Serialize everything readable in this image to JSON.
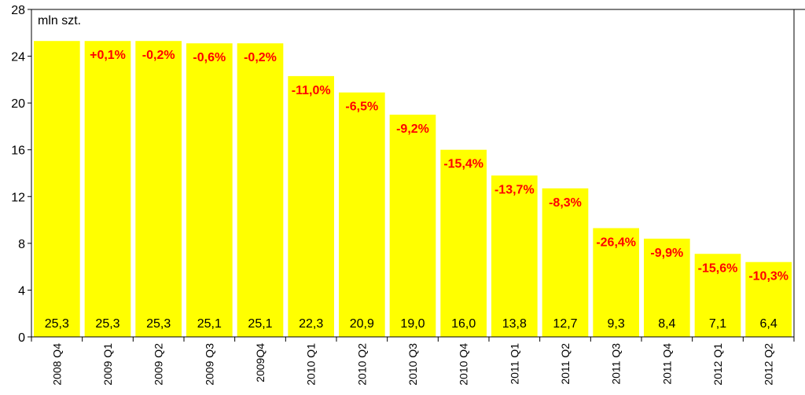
{
  "chart_data": {
    "type": "bar",
    "unit_label": "mln szt.",
    "categories": [
      "2008 Q4",
      "2009 Q1",
      "2009 Q2",
      "2009 Q3",
      "2009Q4",
      "2010 Q1",
      "2010 Q2",
      "2010 Q3",
      "2010 Q4",
      "2011 Q1",
      "2011 Q2",
      "2011 Q3",
      "2011 Q4",
      "2012 Q1",
      "2012 Q2"
    ],
    "values": [
      25.3,
      25.3,
      25.3,
      25.1,
      25.1,
      22.3,
      20.9,
      19.0,
      16.0,
      13.8,
      12.7,
      9.3,
      8.4,
      7.1,
      6.4
    ],
    "value_labels": [
      "25,3",
      "25,3",
      "25,3",
      "25,1",
      "25,1",
      "22,3",
      "20,9",
      "19,0",
      "16,0",
      "13,8",
      "12,7",
      "9,3",
      "8,4",
      "7,1",
      "6,4"
    ],
    "change_labels": [
      "",
      "+0,1%",
      "-0,2%",
      "-0,6%",
      "-0,2%",
      "-11,0%",
      "-6,5%",
      "-9,2%",
      "-15,4%",
      "-13,7%",
      "-8,3%",
      "-26,4%",
      "-9,9%",
      "-15,6%",
      "-10,3%"
    ],
    "yticks": [
      0,
      4,
      8,
      12,
      16,
      20,
      24,
      28
    ],
    "ylim": [
      0,
      28
    ],
    "grid": false,
    "legend": "none",
    "colors": {
      "bar": "#ffff00",
      "change_label": "#ff0000",
      "axis": "#000000"
    }
  }
}
